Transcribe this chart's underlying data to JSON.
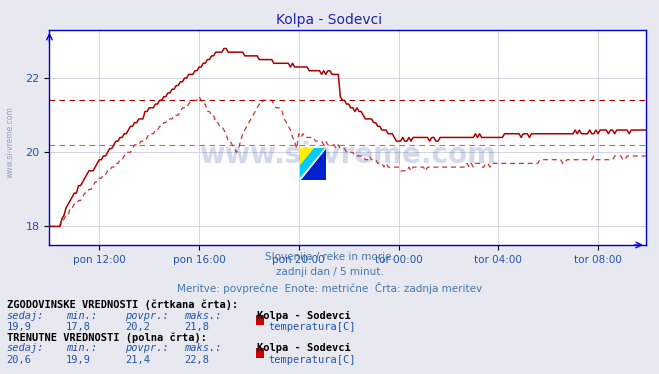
{
  "title": "Kolpa - Sodevci",
  "title_color": "#2222aa",
  "bg_color": "#e8e8f0",
  "plot_bg_color": "#ffffff",
  "grid_color": "#ccccdd",
  "axis_color": "#0000cc",
  "line_color_solid": "#aa0000",
  "line_color_dashed": "#cc3333",
  "hline_solid_avg": 21.4,
  "hline_dashed_avg": 20.2,
  "ylim_min": 17.5,
  "ylim_max": 23.3,
  "yticks": [
    18,
    20,
    22
  ],
  "xtick_labels": [
    "pon 12:00",
    "pon 16:00",
    "pon 20:00",
    "tor 00:00",
    "tor 04:00",
    "tor 08:00"
  ],
  "xlabel_color": "#2255aa",
  "watermark": "www.si-vreme.com",
  "subtitle1": "Slovenija / reke in morje.",
  "subtitle2": "zadnji dan / 5 minut.",
  "subtitle3": "Meritve: povprečne  Enote: metrične  Črta: zadnja meritev",
  "subtitle_color": "#4477aa",
  "legend_label_hist": "ZGODOVINSKE VREDNOSTI (črtkana črta):",
  "legend_label_curr": "TRENUTNE VREDNOSTI (polna črta):",
  "hist_sedaj": "19,9",
  "hist_min": "17,8",
  "hist_povpr": "20,2",
  "hist_maks": "21,8",
  "curr_sedaj": "20,6",
  "curr_min": "19,9",
  "curr_povpr": "21,4",
  "curr_maks": "22,8",
  "station": "Kolpa - Sodevci",
  "param": "temperatura[C]",
  "n_points": 288
}
